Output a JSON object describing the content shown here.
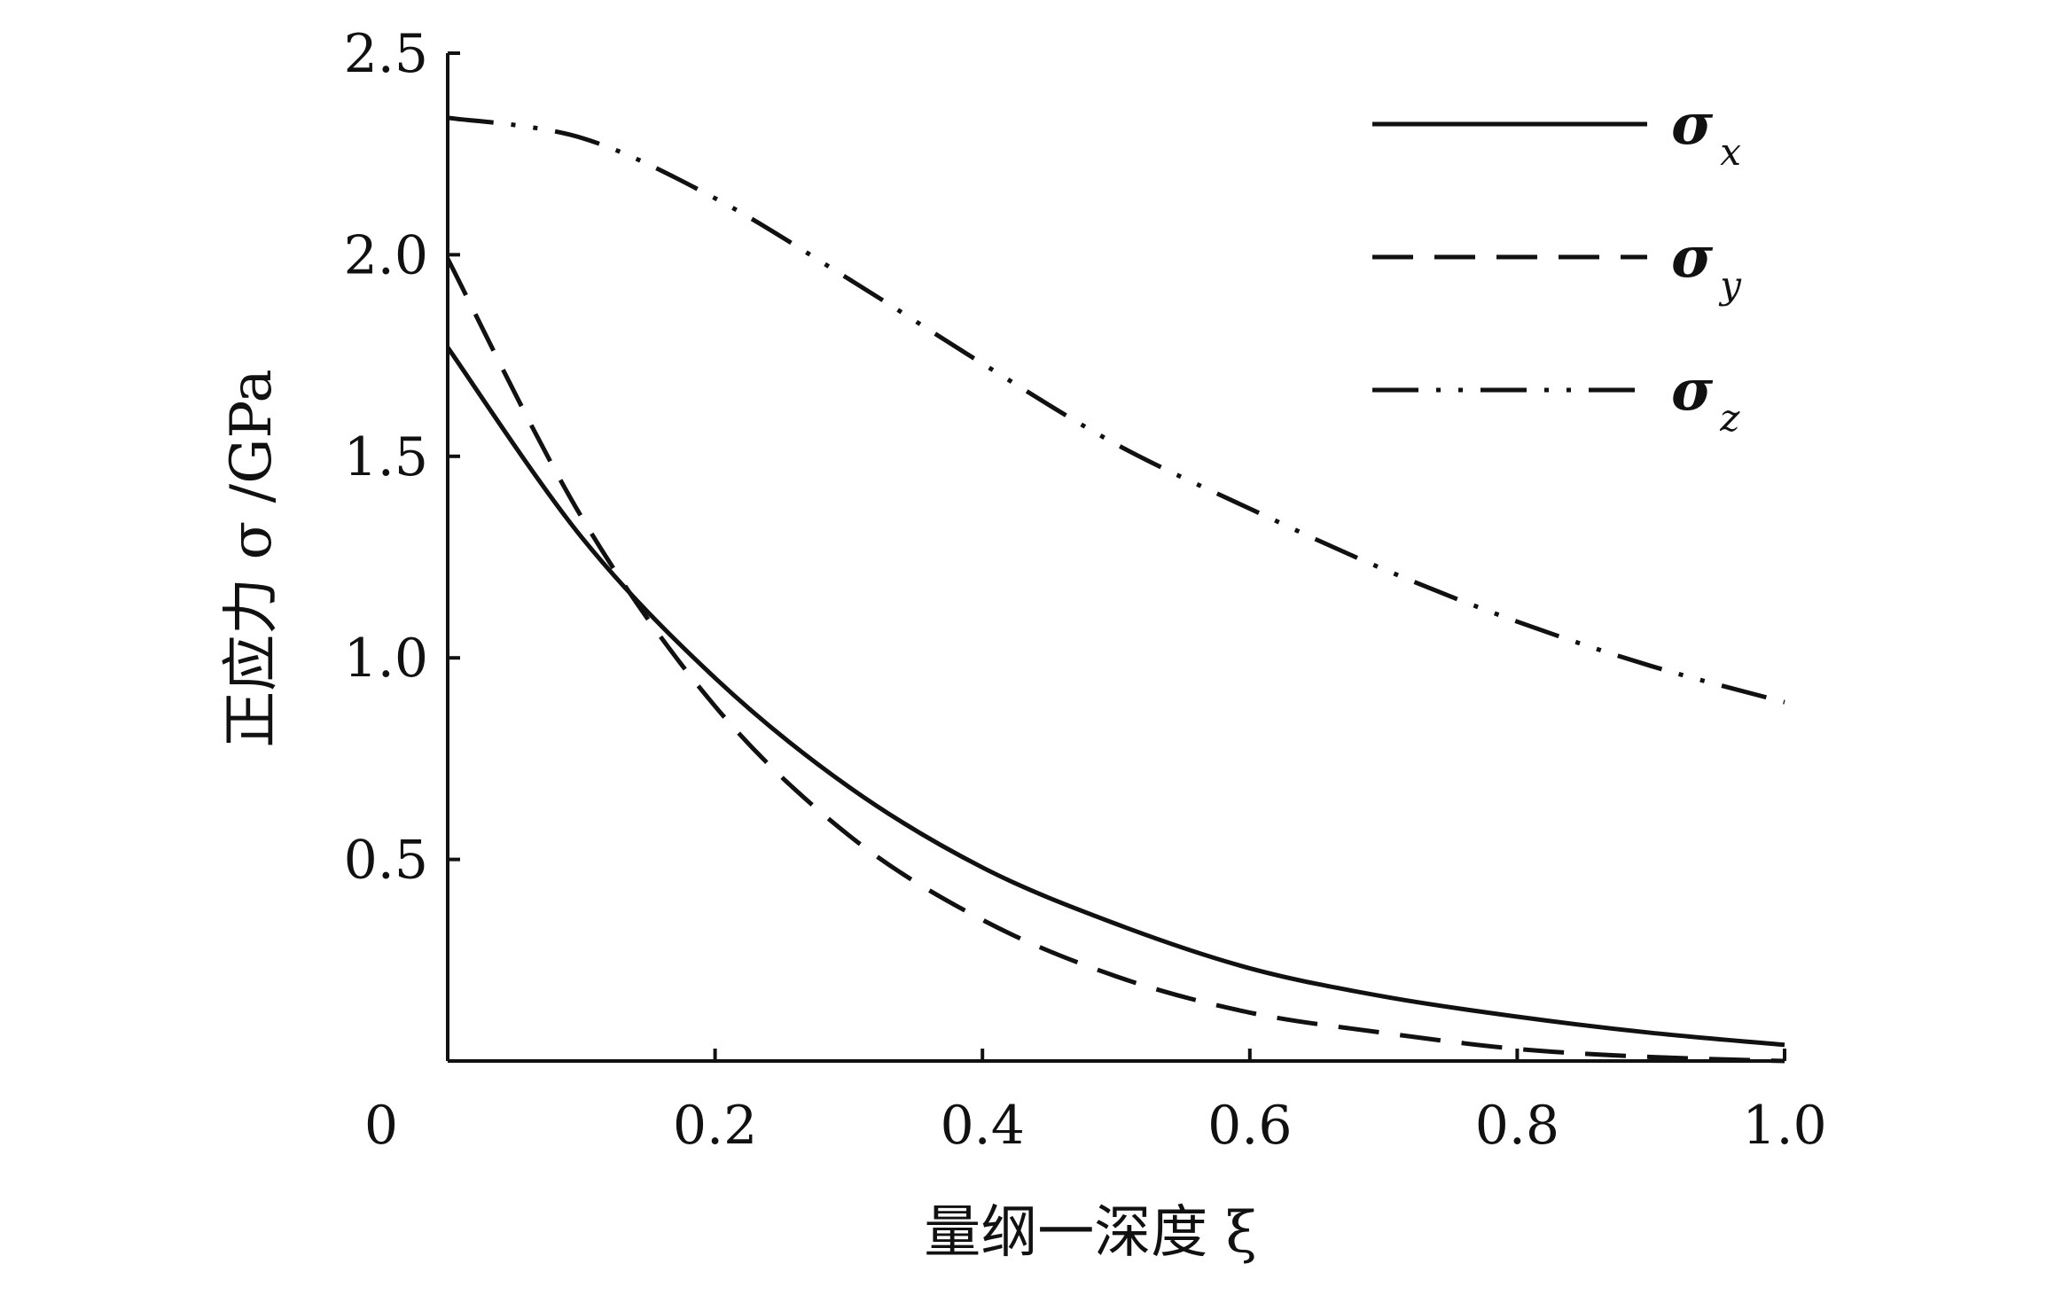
{
  "chart_data": {
    "type": "line",
    "xlabel": "量纲一深度 ξ",
    "ylabel": "正应力 σ /GPa",
    "xlim": [
      0,
      1.0
    ],
    "ylim": [
      0,
      2.5
    ],
    "x_ticks": [
      "0",
      "0.2",
      "0.4",
      "0.6",
      "0.8",
      "1.0"
    ],
    "y_ticks": [
      "0.5",
      "1.0",
      "1.5",
      "2.0",
      "2.5"
    ],
    "grid": false,
    "legend_position": "top-right",
    "x": [
      0,
      0.1,
      0.2,
      0.3,
      0.4,
      0.5,
      0.6,
      0.7,
      0.8,
      0.9,
      1.0
    ],
    "series": [
      {
        "name": "σx",
        "symbol": "σ",
        "subscript": "x",
        "style": "solid",
        "values": [
          1.77,
          1.3,
          0.95,
          0.68,
          0.48,
          0.34,
          0.23,
          0.16,
          0.11,
          0.07,
          0.04
        ]
      },
      {
        "name": "σy",
        "symbol": "σ",
        "subscript": "y",
        "style": "dashed",
        "values": [
          1.99,
          1.35,
          0.88,
          0.56,
          0.35,
          0.21,
          0.12,
          0.07,
          0.03,
          0.01,
          0.0
        ]
      },
      {
        "name": "σz",
        "symbol": "σ",
        "subscript": "z",
        "style": "dash-dot-dot",
        "values": [
          2.34,
          2.29,
          2.14,
          1.94,
          1.73,
          1.53,
          1.37,
          1.22,
          1.09,
          0.98,
          0.89
        ]
      }
    ]
  }
}
